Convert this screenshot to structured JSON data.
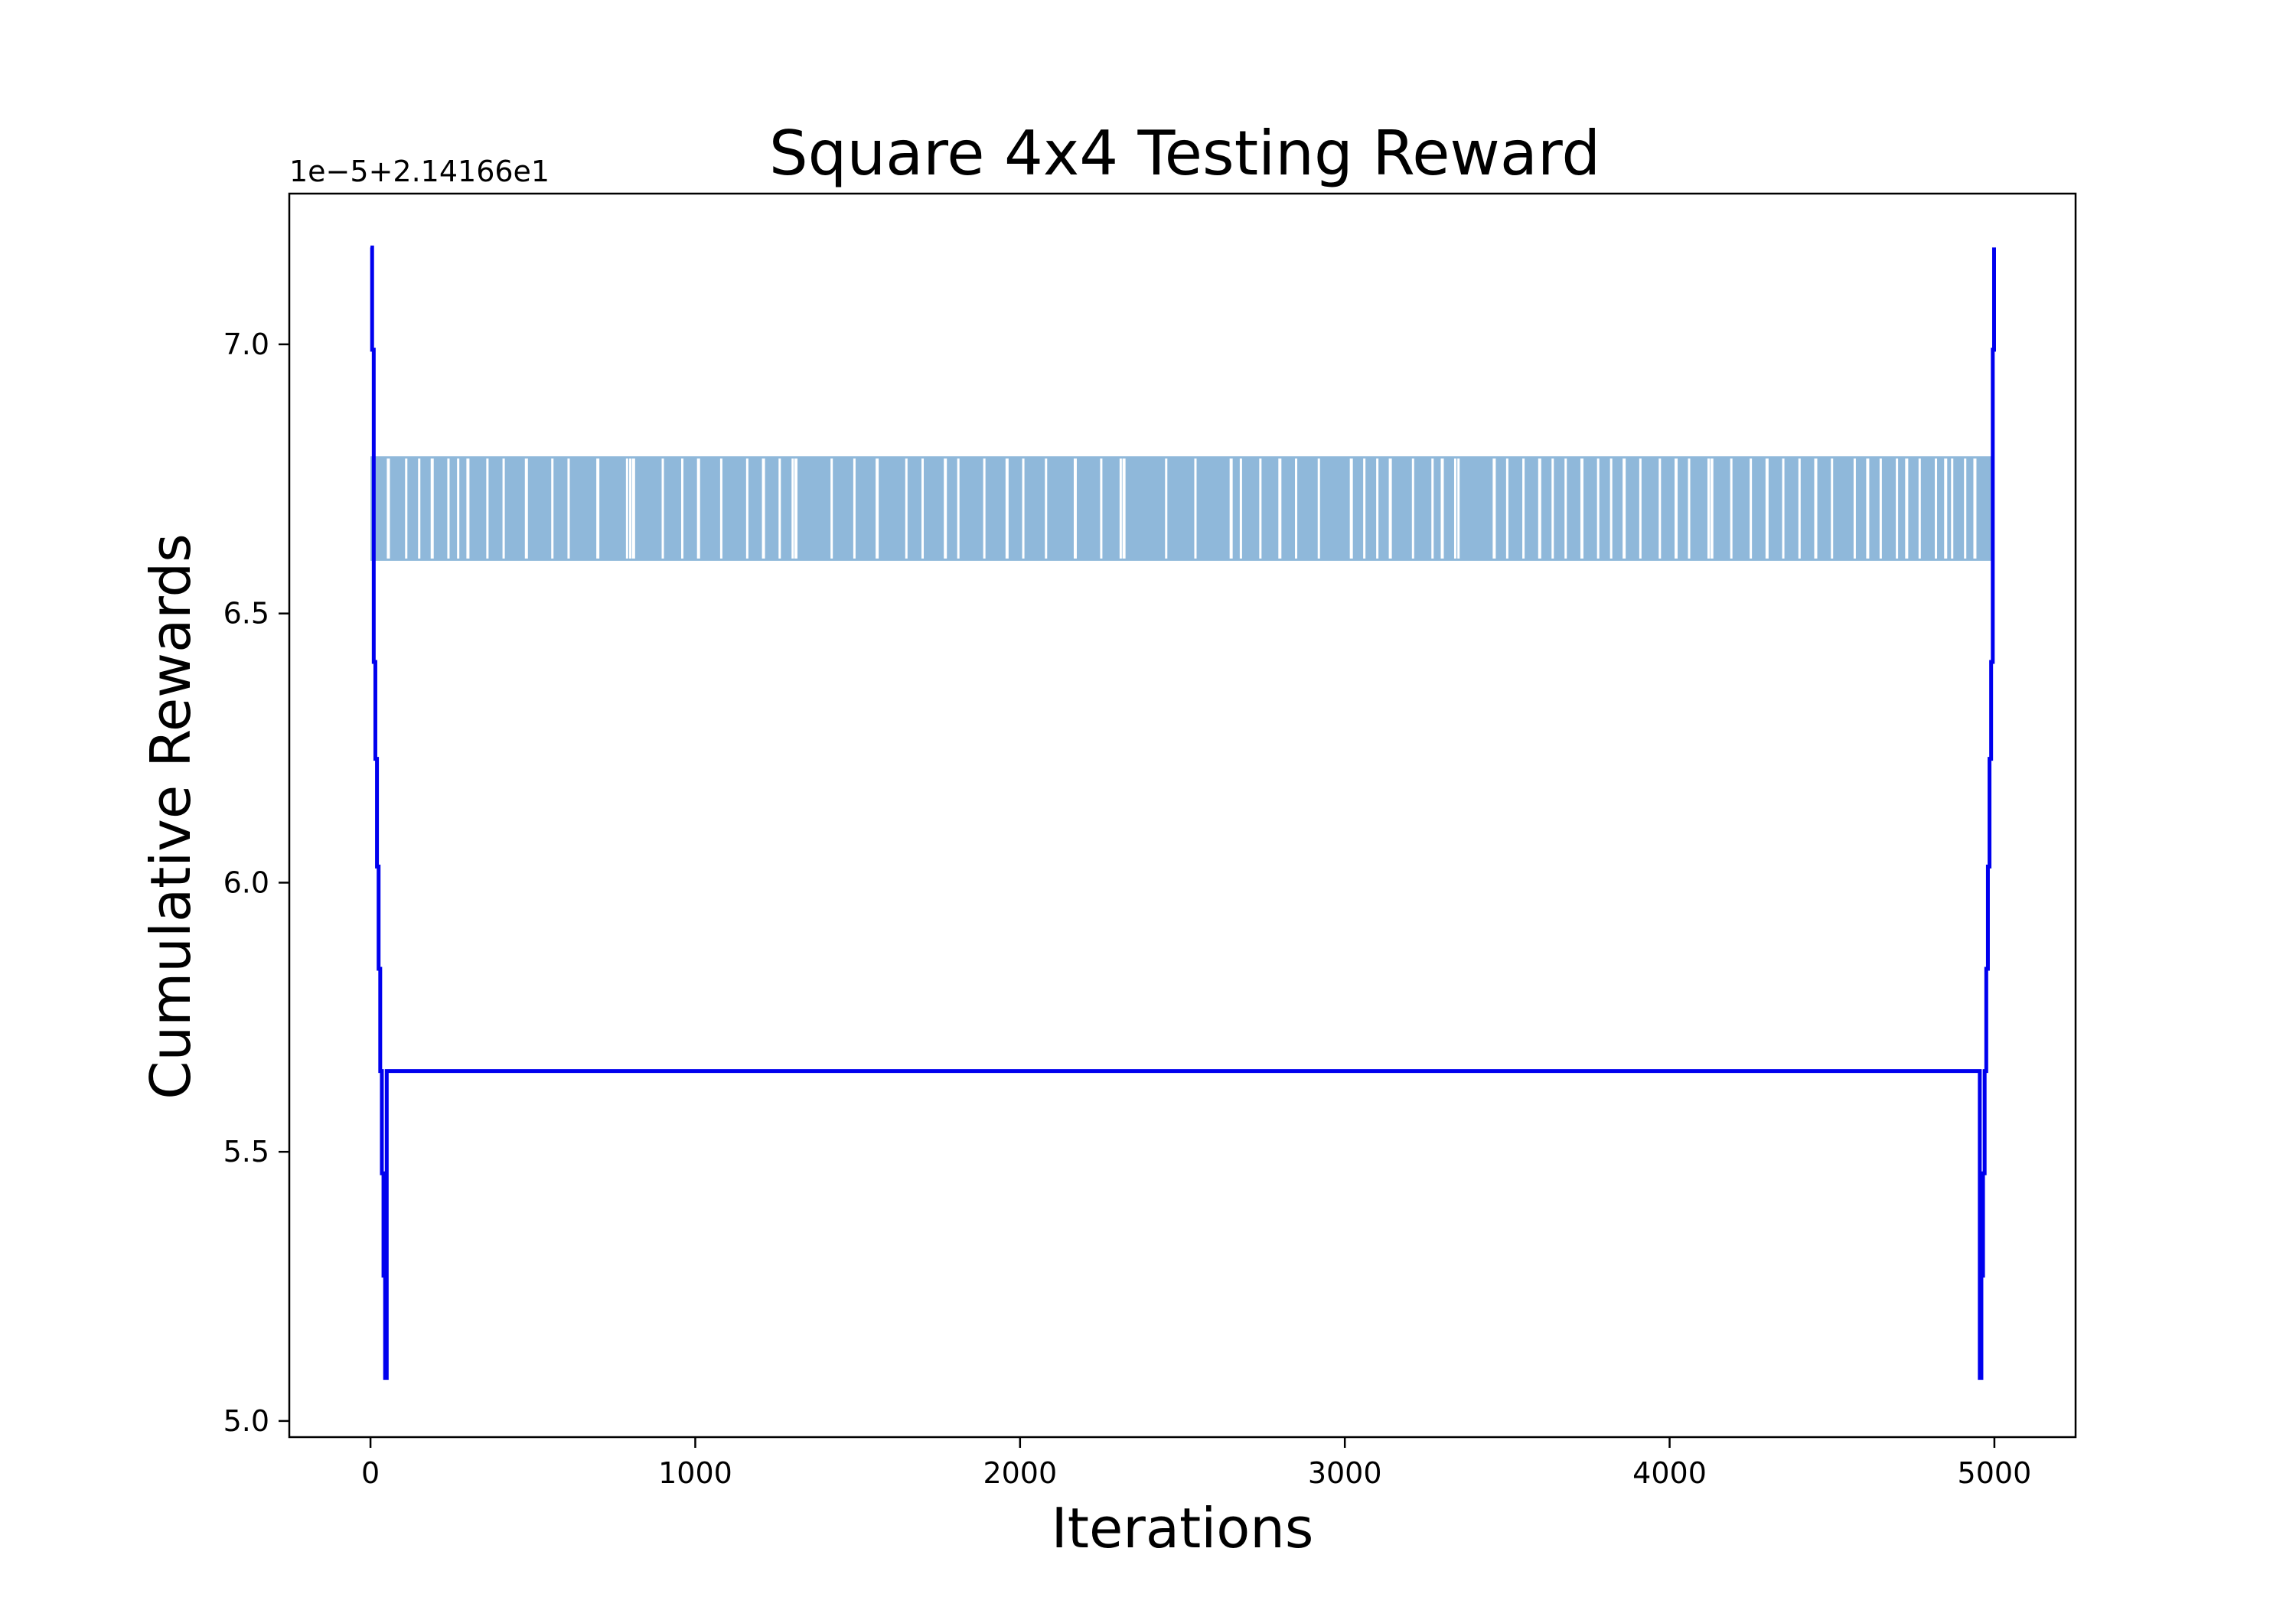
{
  "chart_data": {
    "type": "line",
    "title": "Square 4x4 Testing Reward",
    "xlabel": "Iterations",
    "ylabel": "Cumulative Rewards",
    "offset_text": "1e−5+2.14166e1",
    "xlim": [
      -250,
      5250
    ],
    "ylim": [
      4.97,
      7.28
    ],
    "x_ticks": [
      0,
      1000,
      2000,
      3000,
      4000,
      5000
    ],
    "x_tick_labels": [
      "0",
      "1000",
      "2000",
      "3000",
      "4000",
      "5000"
    ],
    "y_ticks": [
      5.0,
      5.5,
      6.0,
      6.5,
      7.0
    ],
    "y_tick_labels": [
      "5.0",
      "5.5",
      "6.0",
      "6.5",
      "7.0"
    ],
    "grid": false,
    "series": [
      {
        "role": "raw",
        "color": "#8fb8da",
        "x_range": [
          0,
          4999
        ],
        "values_alternate": [
          6.6,
          6.79
        ],
        "gaps_x": [
          55,
          110,
          150,
          190,
          240,
          270,
          300,
          360,
          410,
          480,
          560,
          610,
          700,
          790,
          800,
          810,
          900,
          960,
          1010,
          1080,
          1160,
          1210,
          1260,
          1300,
          1310,
          1420,
          1490,
          1560,
          1650,
          1700,
          1770,
          1810,
          1890,
          1960,
          2010,
          2080,
          2170,
          2250,
          2310,
          2320,
          2450,
          2540,
          2650,
          2680,
          2740,
          2800,
          2850,
          2920,
          3020,
          3060,
          3100,
          3140,
          3210,
          3270,
          3300,
          3340,
          3350,
          3460,
          3500,
          3550,
          3600,
          3640,
          3680,
          3730,
          3780,
          3820,
          3860,
          3910,
          3970,
          4020,
          4060,
          4120,
          4130,
          4190,
          4250,
          4300,
          4350,
          4400,
          4450,
          4500,
          4570,
          4610,
          4650,
          4700,
          4730,
          4770,
          4820,
          4850,
          4870,
          4910,
          4940
        ]
      },
      {
        "role": "smoothed",
        "color": "#0000ee",
        "x": [
          0,
          5,
          10,
          15,
          20,
          25,
          30,
          35,
          40,
          45,
          50,
          55,
          4950,
          4955,
          4960,
          4965,
          4970,
          4975,
          4980,
          4985,
          4990,
          4995,
          4999
        ],
        "values": [
          7.18,
          6.99,
          6.41,
          6.23,
          6.03,
          5.84,
          5.65,
          5.46,
          5.27,
          5.08,
          5.65,
          5.65,
          5.65,
          5.08,
          5.27,
          5.46,
          5.65,
          5.84,
          6.03,
          6.23,
          6.41,
          6.99,
          7.18
        ]
      }
    ]
  }
}
